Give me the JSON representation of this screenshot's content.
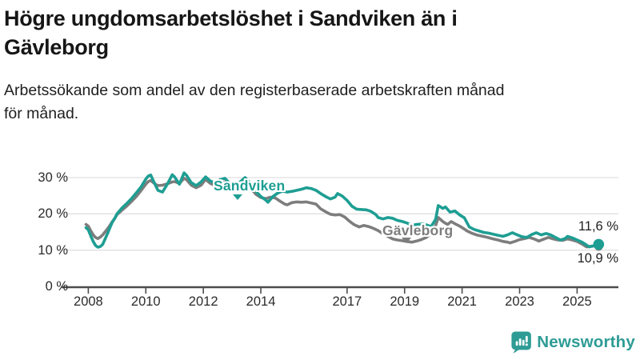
{
  "header": {
    "title_lines": [
      "Högre ungdomsarbetslöshet i Sandviken än i",
      "Gävleborg"
    ],
    "subtitle_lines": [
      "Arbetssökande som andel av den registerbaserade arbetskraften månad",
      "för månad."
    ]
  },
  "colors": {
    "sandviken": "#1E9E93",
    "gavleborg": "#7D7D7D",
    "grid": "#E1E1E1",
    "axis": "#4D4D4D",
    "brand_teal": "#2E9C95"
  },
  "footer": {
    "brand": "Newsworthy",
    "logo_icon": "bar-chart-speech-bubble"
  },
  "chart_data": {
    "type": "line",
    "title": "Högre ungdomsarbetslöshet i Sandviken än i Gävleborg",
    "xlabel": "",
    "ylabel": "Arbetssökande som andel av den registerbaserade arbetskraften",
    "unit": "%",
    "grid": "horizontal",
    "xlim": [
      2007.1,
      2026.45
    ],
    "ylim": [
      0,
      32.5
    ],
    "x_ticks": [
      2008,
      2010,
      2012,
      2014,
      2017,
      2019,
      2021,
      2023,
      2025
    ],
    "y_ticks": [
      {
        "value": 0,
        "label": "0 %"
      },
      {
        "value": 10,
        "label": "10 %"
      },
      {
        "value": 20,
        "label": "20 %"
      },
      {
        "value": 30,
        "label": "30 %"
      }
    ],
    "series": [
      {
        "name": "Sandviken",
        "color": "#1E9E93",
        "end_label": "11,6 %",
        "end_value": 11.6,
        "points": [
          [
            2007.92,
            16.2
          ],
          [
            2008.0,
            15.6
          ],
          [
            2008.08,
            14.0
          ],
          [
            2008.17,
            12.4
          ],
          [
            2008.25,
            11.3
          ],
          [
            2008.33,
            10.8
          ],
          [
            2008.42,
            11.0
          ],
          [
            2008.5,
            11.6
          ],
          [
            2008.58,
            13.0
          ],
          [
            2008.67,
            14.6
          ],
          [
            2008.75,
            16.2
          ],
          [
            2008.83,
            17.6
          ],
          [
            2008.92,
            18.8
          ],
          [
            2009.0,
            20.0
          ],
          [
            2009.17,
            21.6
          ],
          [
            2009.33,
            22.8
          ],
          [
            2009.5,
            24.2
          ],
          [
            2009.67,
            25.8
          ],
          [
            2009.83,
            27.4
          ],
          [
            2010.0,
            29.6
          ],
          [
            2010.08,
            30.4
          ],
          [
            2010.17,
            30.7
          ],
          [
            2010.33,
            28.0
          ],
          [
            2010.42,
            26.5
          ],
          [
            2010.58,
            26.0
          ],
          [
            2010.75,
            28.2
          ],
          [
            2010.92,
            30.8
          ],
          [
            2011.0,
            30.2
          ],
          [
            2011.17,
            28.2
          ],
          [
            2011.33,
            31.3
          ],
          [
            2011.42,
            30.6
          ],
          [
            2011.58,
            28.6
          ],
          [
            2011.75,
            27.8
          ],
          [
            2011.92,
            28.8
          ],
          [
            2012.08,
            30.2
          ],
          [
            2012.25,
            29.0
          ],
          [
            2012.42,
            28.6
          ],
          [
            2012.58,
            29.4
          ],
          [
            2012.75,
            29.8
          ],
          [
            2012.92,
            28.4
          ],
          [
            2013.08,
            27.6
          ],
          [
            2013.25,
            28.6
          ],
          [
            2013.45,
            30.0
          ],
          [
            2013.67,
            28.2
          ],
          [
            2013.83,
            26.2
          ],
          [
            2014.0,
            24.8
          ],
          [
            2014.17,
            23.8
          ],
          [
            2014.25,
            23.2
          ],
          [
            2014.42,
            24.8
          ],
          [
            2014.58,
            25.7
          ],
          [
            2014.75,
            26.3
          ],
          [
            2014.92,
            26.0
          ],
          [
            2015.08,
            26.2
          ],
          [
            2015.25,
            26.5
          ],
          [
            2015.42,
            26.8
          ],
          [
            2015.58,
            27.2
          ],
          [
            2015.75,
            27.0
          ],
          [
            2015.92,
            26.5
          ],
          [
            2016.08,
            25.6
          ],
          [
            2016.25,
            24.8
          ],
          [
            2016.42,
            24.1
          ],
          [
            2016.58,
            24.6
          ],
          [
            2016.67,
            25.6
          ],
          [
            2016.83,
            24.9
          ],
          [
            2017.0,
            23.7
          ],
          [
            2017.17,
            22.1
          ],
          [
            2017.33,
            21.3
          ],
          [
            2017.5,
            21.2
          ],
          [
            2017.67,
            21.1
          ],
          [
            2017.83,
            20.7
          ],
          [
            2018.0,
            19.8
          ],
          [
            2018.08,
            19.0
          ],
          [
            2018.25,
            18.6
          ],
          [
            2018.42,
            19.0
          ],
          [
            2018.58,
            18.8
          ],
          [
            2018.75,
            18.2
          ],
          [
            2018.92,
            17.9
          ],
          [
            2019.08,
            17.5
          ],
          [
            2019.25,
            16.8
          ],
          [
            2019.42,
            17.1
          ],
          [
            2019.58,
            17.2
          ],
          [
            2019.75,
            17.0
          ],
          [
            2019.92,
            16.5
          ],
          [
            2020.08,
            18.5
          ],
          [
            2020.17,
            22.3
          ],
          [
            2020.33,
            21.5
          ],
          [
            2020.42,
            21.9
          ],
          [
            2020.58,
            20.5
          ],
          [
            2020.75,
            20.8
          ],
          [
            2020.92,
            19.7
          ],
          [
            2021.08,
            18.9
          ],
          [
            2021.25,
            16.4
          ],
          [
            2021.42,
            15.7
          ],
          [
            2021.58,
            15.3
          ],
          [
            2021.75,
            14.9
          ],
          [
            2021.92,
            14.7
          ],
          [
            2022.08,
            14.4
          ],
          [
            2022.25,
            14.1
          ],
          [
            2022.42,
            13.8
          ],
          [
            2022.58,
            14.2
          ],
          [
            2022.75,
            14.8
          ],
          [
            2022.92,
            14.2
          ],
          [
            2023.08,
            13.7
          ],
          [
            2023.25,
            13.5
          ],
          [
            2023.42,
            14.3
          ],
          [
            2023.58,
            14.8
          ],
          [
            2023.75,
            14.2
          ],
          [
            2023.92,
            14.6
          ],
          [
            2024.08,
            14.2
          ],
          [
            2024.25,
            13.5
          ],
          [
            2024.42,
            12.8
          ],
          [
            2024.58,
            13.2
          ],
          [
            2024.67,
            13.8
          ],
          [
            2024.83,
            13.4
          ],
          [
            2025.0,
            12.8
          ],
          [
            2025.17,
            12.2
          ],
          [
            2025.33,
            11.4
          ],
          [
            2025.42,
            10.9
          ],
          [
            2025.58,
            11.2
          ],
          [
            2025.75,
            11.6
          ]
        ]
      },
      {
        "name": "Gävleborg",
        "color": "#7D7D7D",
        "end_label": "10,9 %",
        "end_value": 10.9,
        "points": [
          [
            2007.92,
            17.1
          ],
          [
            2008.0,
            16.6
          ],
          [
            2008.08,
            15.4
          ],
          [
            2008.17,
            14.2
          ],
          [
            2008.25,
            13.5
          ],
          [
            2008.33,
            13.2
          ],
          [
            2008.42,
            13.6
          ],
          [
            2008.5,
            14.2
          ],
          [
            2008.58,
            15.0
          ],
          [
            2008.67,
            15.9
          ],
          [
            2008.75,
            16.8
          ],
          [
            2008.83,
            17.8
          ],
          [
            2008.92,
            18.8
          ],
          [
            2009.0,
            19.8
          ],
          [
            2009.17,
            21.0
          ],
          [
            2009.33,
            22.1
          ],
          [
            2009.5,
            23.4
          ],
          [
            2009.67,
            24.8
          ],
          [
            2009.83,
            26.4
          ],
          [
            2010.0,
            28.2
          ],
          [
            2010.08,
            28.9
          ],
          [
            2010.17,
            29.2
          ],
          [
            2010.33,
            28.2
          ],
          [
            2010.42,
            27.8
          ],
          [
            2010.58,
            27.9
          ],
          [
            2010.75,
            28.3
          ],
          [
            2010.92,
            28.8
          ],
          [
            2011.0,
            28.9
          ],
          [
            2011.17,
            28.4
          ],
          [
            2011.33,
            29.8
          ],
          [
            2011.42,
            29.4
          ],
          [
            2011.58,
            27.9
          ],
          [
            2011.75,
            27.2
          ],
          [
            2011.92,
            27.9
          ],
          [
            2012.08,
            29.5
          ],
          [
            2012.25,
            28.4
          ],
          [
            2012.42,
            27.8
          ],
          [
            2012.58,
            28.4
          ],
          [
            2012.75,
            28.8
          ],
          [
            2012.92,
            27.5
          ],
          [
            2013.08,
            26.6
          ],
          [
            2013.25,
            27.5
          ],
          [
            2013.45,
            28.4
          ],
          [
            2013.67,
            26.9
          ],
          [
            2013.83,
            25.4
          ],
          [
            2014.0,
            24.5
          ],
          [
            2014.17,
            24.2
          ],
          [
            2014.33,
            24.6
          ],
          [
            2014.5,
            24.4
          ],
          [
            2014.67,
            23.5
          ],
          [
            2014.83,
            22.7
          ],
          [
            2014.92,
            22.5
          ],
          [
            2015.08,
            23.1
          ],
          [
            2015.25,
            23.3
          ],
          [
            2015.42,
            23.2
          ],
          [
            2015.58,
            23.3
          ],
          [
            2015.75,
            23.0
          ],
          [
            2015.92,
            22.7
          ],
          [
            2016.08,
            21.4
          ],
          [
            2016.25,
            20.6
          ],
          [
            2016.42,
            19.9
          ],
          [
            2016.58,
            19.7
          ],
          [
            2016.75,
            19.8
          ],
          [
            2016.92,
            19.1
          ],
          [
            2017.08,
            18.0
          ],
          [
            2017.25,
            17.0
          ],
          [
            2017.42,
            16.4
          ],
          [
            2017.58,
            16.8
          ],
          [
            2017.75,
            16.5
          ],
          [
            2017.92,
            16.0
          ],
          [
            2018.08,
            15.4
          ],
          [
            2018.25,
            14.5
          ],
          [
            2018.42,
            13.8
          ],
          [
            2018.58,
            13.1
          ],
          [
            2018.75,
            12.8
          ],
          [
            2018.92,
            12.6
          ],
          [
            2019.08,
            12.4
          ],
          [
            2019.25,
            12.2
          ],
          [
            2019.42,
            12.5
          ],
          [
            2019.58,
            12.9
          ],
          [
            2019.75,
            13.5
          ],
          [
            2019.92,
            14.5
          ],
          [
            2020.08,
            16.8
          ],
          [
            2020.17,
            19.0
          ],
          [
            2020.33,
            17.9
          ],
          [
            2020.42,
            17.4
          ],
          [
            2020.5,
            17.1
          ],
          [
            2020.62,
            17.9
          ],
          [
            2020.75,
            17.3
          ],
          [
            2020.92,
            16.6
          ],
          [
            2021.08,
            15.8
          ],
          [
            2021.17,
            15.3
          ],
          [
            2021.33,
            14.7
          ],
          [
            2021.5,
            14.2
          ],
          [
            2021.67,
            13.9
          ],
          [
            2021.83,
            13.6
          ],
          [
            2022.08,
            13.1
          ],
          [
            2022.25,
            12.8
          ],
          [
            2022.42,
            12.4
          ],
          [
            2022.58,
            12.2
          ],
          [
            2022.67,
            12.0
          ],
          [
            2022.83,
            12.4
          ],
          [
            2023.0,
            12.9
          ],
          [
            2023.17,
            13.2
          ],
          [
            2023.33,
            13.5
          ],
          [
            2023.5,
            13.1
          ],
          [
            2023.67,
            12.5
          ],
          [
            2023.83,
            13.0
          ],
          [
            2024.0,
            13.5
          ],
          [
            2024.17,
            13.1
          ],
          [
            2024.33,
            12.8
          ],
          [
            2024.5,
            12.7
          ],
          [
            2024.67,
            13.1
          ],
          [
            2024.83,
            12.8
          ],
          [
            2025.0,
            12.4
          ],
          [
            2025.17,
            11.7
          ],
          [
            2025.33,
            10.9
          ],
          [
            2025.5,
            11.1
          ],
          [
            2025.67,
            11.2
          ],
          [
            2025.75,
            10.9
          ]
        ]
      }
    ],
    "legend_position": "inline-labels",
    "annotations": [
      {
        "text": "Sandviken",
        "series": 0
      },
      {
        "text": "Gävleborg",
        "series": 1
      },
      {
        "text": "11,6 %",
        "series": 0,
        "position": "end"
      },
      {
        "text": "10,9 %",
        "series": 1,
        "position": "end"
      }
    ]
  }
}
